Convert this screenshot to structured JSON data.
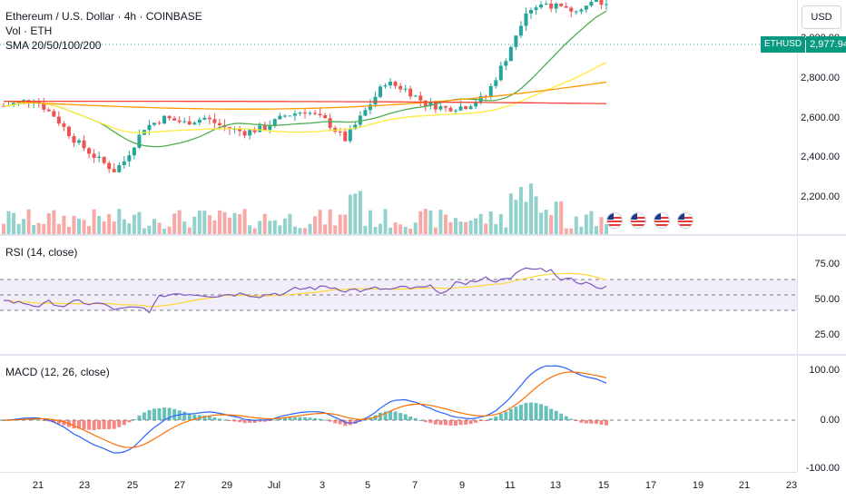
{
  "legend": {
    "title": "Ethereum / U.S. Dollar · 4h · COINBASE",
    "vol": "Vol · ETH",
    "sma": "SMA 20/50/100/200"
  },
  "currency_button": "USD",
  "last_price": {
    "symbol": "ETHUSD",
    "value": "2,977.94",
    "color": "#089981"
  },
  "main_scale": [
    "3,000.00",
    "2,800.00",
    "2,600.00",
    "2,400.00",
    "2,200.00"
  ],
  "rsi": {
    "label": "RSI (14, close)",
    "scale": [
      "75.00",
      "50.00",
      "25.00"
    ]
  },
  "macd": {
    "label": "MACD (12, 26, close)",
    "scale": [
      "100.00",
      "0.00",
      "-100.00"
    ]
  },
  "time_axis": [
    "21",
    "23",
    "25",
    "27",
    "29",
    "Jul",
    "3",
    "5",
    "7",
    "9",
    "11",
    "13",
    "15",
    "17",
    "19",
    "21",
    "23"
  ],
  "colors": {
    "up": "#26a69a",
    "down": "#ef5350",
    "sma20": "#4caf50",
    "sma50": "#ffeb3b",
    "sma100": "#ff9800",
    "sma200": "#f44336",
    "rsi": "#7e57c2",
    "rsi_ma": "#fdd835",
    "macd": "#2962ff",
    "signal": "#ff6d00"
  },
  "icons": [
    "us-flag-icon",
    "us-flag-icon",
    "us-flag-icon",
    "us-flag-icon"
  ],
  "chart_data": {
    "type": "candlestick",
    "title": "Ethereum / U.S. Dollar · 4h · COINBASE",
    "ylim": [
      2100,
      3060
    ],
    "close_series_points": [
      [
        0,
        2560
      ],
      [
        6,
        2590
      ],
      [
        10,
        2520
      ],
      [
        14,
        2420
      ],
      [
        18,
        2350
      ],
      [
        22,
        2290
      ],
      [
        24,
        2330
      ],
      [
        28,
        2470
      ],
      [
        32,
        2510
      ],
      [
        36,
        2490
      ],
      [
        40,
        2510
      ],
      [
        44,
        2470
      ],
      [
        48,
        2450
      ],
      [
        52,
        2470
      ],
      [
        56,
        2520
      ],
      [
        60,
        2540
      ],
      [
        64,
        2500
      ],
      [
        68,
        2420
      ],
      [
        72,
        2540
      ],
      [
        76,
        2660
      ],
      [
        80,
        2630
      ],
      [
        84,
        2570
      ],
      [
        88,
        2550
      ],
      [
        92,
        2560
      ],
      [
        96,
        2600
      ],
      [
        100,
        2760
      ],
      [
        104,
        2960
      ],
      [
        108,
        2990
      ],
      [
        112,
        2960
      ],
      [
        116,
        2980
      ],
      [
        118,
        3000
      ],
      [
        120,
        2977.94
      ]
    ],
    "sma": [
      {
        "name": "SMA 20",
        "end": 2950
      },
      {
        "name": "SMA 50",
        "end": 2820
      },
      {
        "name": "SMA 100",
        "end": 2660
      },
      {
        "name": "SMA 200",
        "end": 2570
      }
    ]
  }
}
